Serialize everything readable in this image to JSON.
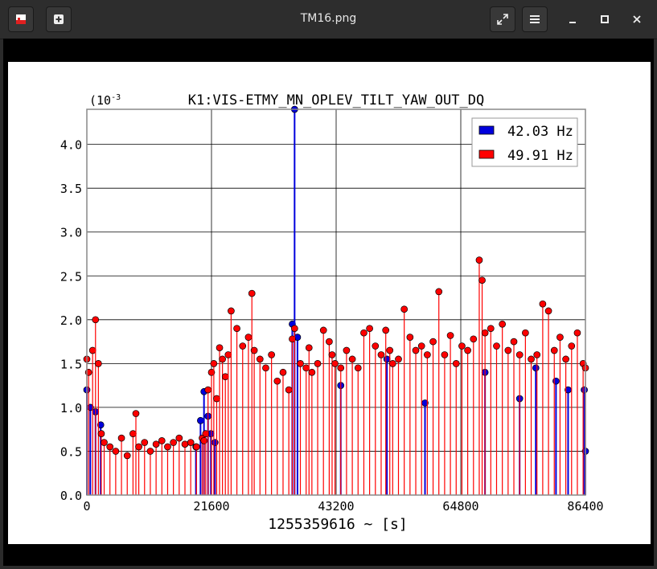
{
  "window": {
    "title": "TM16.png",
    "icons": {
      "app": "image-app-icon",
      "new": "new-window-icon",
      "fullscreen": "fullscreen-icon",
      "menu": "hamburger-menu-icon",
      "minimize": "minimize-icon",
      "maximize": "maximize-icon",
      "close": "close-icon"
    }
  },
  "chart_data": {
    "type": "scatter",
    "title": "K1:VIS-ETMY_MN_OPLEV_TILT_YAW_OUT_DQ",
    "xlabel": "1255359616 ~ [s]",
    "ylabel": "",
    "y_exponent_label": "(10",
    "y_exponent_power": "-3",
    "xlim": [
      0,
      86400
    ],
    "ylim": [
      0,
      4.4
    ],
    "x_ticks": [
      "0",
      "21600",
      "43200",
      "64800",
      "86400"
    ],
    "y_ticks": [
      "0.0",
      "0.5",
      "1.0",
      "1.5",
      "2.0",
      "2.5",
      "3.0",
      "3.5",
      "4.0"
    ],
    "grid": true,
    "legend_position": "top-right",
    "colors": {
      "blue": "#0000dd",
      "red": "#ff0000"
    },
    "series": [
      {
        "name": "42.03 Hz",
        "x": [
          0,
          600,
          1500,
          2400,
          18900,
          19700,
          20300,
          21000,
          21500,
          22200,
          35600,
          36000,
          36500,
          44000,
          52000,
          58600,
          69000,
          75000,
          77800,
          81300,
          83400,
          86200,
          86400
        ],
        "y": [
          1.2,
          1.0,
          0.95,
          0.8,
          0.55,
          0.85,
          1.18,
          0.9,
          0.7,
          0.6,
          1.95,
          4.4,
          1.8,
          1.25,
          1.55,
          1.05,
          1.4,
          1.1,
          1.45,
          1.3,
          1.2,
          1.2,
          0.5
        ]
      },
      {
        "name": "49.91 Hz",
        "x": [
          0,
          300,
          1000,
          1500,
          2000,
          2500,
          3000,
          4000,
          5000,
          6000,
          7000,
          8000,
          8500,
          9000,
          10000,
          11000,
          12000,
          13000,
          14000,
          15000,
          16000,
          17000,
          18000,
          19000,
          20000,
          20300,
          20600,
          21000,
          21600,
          22000,
          22500,
          23000,
          23500,
          24000,
          24500,
          25000,
          26000,
          27000,
          28000,
          28600,
          29000,
          30000,
          31000,
          32000,
          33000,
          34000,
          35000,
          35600,
          36000,
          37000,
          38000,
          38500,
          39000,
          40000,
          41000,
          42000,
          42500,
          43000,
          44000,
          45000,
          46000,
          47000,
          48000,
          49000,
          50000,
          51000,
          51800,
          52500,
          53000,
          54000,
          55000,
          56000,
          57000,
          58000,
          59000,
          60000,
          61000,
          62000,
          63000,
          64000,
          65000,
          66000,
          67000,
          68000,
          68500,
          69000,
          70000,
          71000,
          72000,
          73000,
          74000,
          75000,
          76000,
          77000,
          78000,
          79000,
          80000,
          81000,
          82000,
          83000,
          84000,
          85000,
          86000,
          86400
        ],
        "y": [
          1.55,
          1.4,
          1.65,
          2.0,
          1.5,
          0.7,
          0.6,
          0.55,
          0.5,
          0.65,
          0.45,
          0.7,
          0.93,
          0.55,
          0.6,
          0.5,
          0.58,
          0.62,
          0.55,
          0.6,
          0.65,
          0.58,
          0.6,
          0.55,
          0.65,
          0.62,
          0.7,
          1.2,
          1.4,
          1.5,
          1.1,
          1.68,
          1.55,
          1.35,
          1.6,
          2.1,
          1.9,
          1.7,
          1.8,
          2.3,
          1.65,
          1.55,
          1.45,
          1.6,
          1.3,
          1.4,
          1.2,
          1.78,
          1.9,
          1.5,
          1.45,
          1.68,
          1.4,
          1.5,
          1.88,
          1.75,
          1.6,
          1.5,
          1.45,
          1.65,
          1.55,
          1.45,
          1.85,
          1.9,
          1.7,
          1.6,
          1.88,
          1.65,
          1.5,
          1.55,
          2.12,
          1.8,
          1.65,
          1.7,
          1.6,
          1.75,
          2.32,
          1.6,
          1.82,
          1.5,
          1.7,
          1.65,
          1.78,
          2.68,
          2.45,
          1.85,
          1.9,
          1.7,
          1.95,
          1.65,
          1.75,
          1.6,
          1.85,
          1.55,
          1.6,
          2.18,
          2.1,
          1.65,
          1.8,
          1.55,
          1.7,
          1.85,
          1.5,
          1.45
        ]
      }
    ]
  }
}
